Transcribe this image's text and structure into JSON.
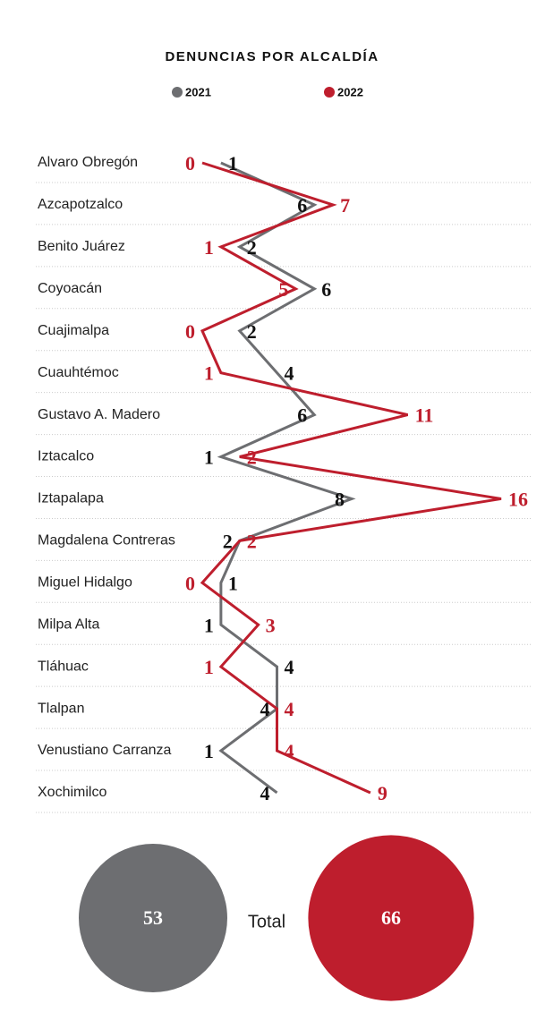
{
  "chart_data": {
    "type": "line",
    "orientation": "horizontal",
    "title": "DENUNCIAS POR ALCALDÍA",
    "categories": [
      "Alvaro Obregón",
      "Azcapotzalco",
      "Benito Juárez",
      "Coyoacán",
      "Cuajimalpa",
      "Cuauhtémoc",
      "Gustavo A. Madero",
      "Iztacalco",
      "Iztapalapa",
      "Magdalena Contreras",
      "Miguel Hidalgo",
      "Milpa Alta",
      "Tláhuac",
      "Tlalpan",
      "Venustiano Carranza",
      "Xochimilco"
    ],
    "series": [
      {
        "name": "2021",
        "color": "#6d6e71",
        "values": [
          1,
          6,
          2,
          6,
          2,
          4,
          6,
          1,
          8,
          2,
          1,
          1,
          4,
          4,
          1,
          4
        ]
      },
      {
        "name": "2022",
        "color": "#be1e2d",
        "values": [
          0,
          7,
          1,
          5,
          0,
          1,
          11,
          2,
          16,
          2,
          0,
          3,
          1,
          4,
          4,
          9
        ]
      }
    ],
    "xlim": [
      0,
      16
    ],
    "totals": {
      "label": "Total",
      "values": [
        53,
        66
      ]
    }
  }
}
